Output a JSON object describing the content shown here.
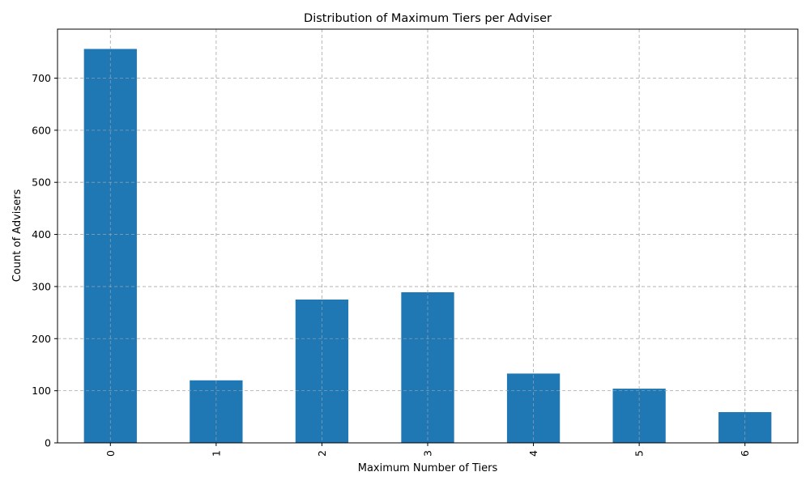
{
  "chart_data": {
    "type": "bar",
    "title": "Distribution of Maximum Tiers per Adviser",
    "xlabel": "Maximum Number of Tiers",
    "ylabel": "Count of Advisers",
    "categories": [
      "0",
      "1",
      "2",
      "3",
      "4",
      "5",
      "6"
    ],
    "values": [
      756,
      120,
      275,
      289,
      133,
      104,
      59
    ],
    "ylim": [
      0,
      794
    ],
    "yticks": [
      0,
      100,
      200,
      300,
      400,
      500,
      600,
      700
    ],
    "grid": true,
    "bar_color": "#1f77b4",
    "grid_color": "#b0b0b0"
  }
}
